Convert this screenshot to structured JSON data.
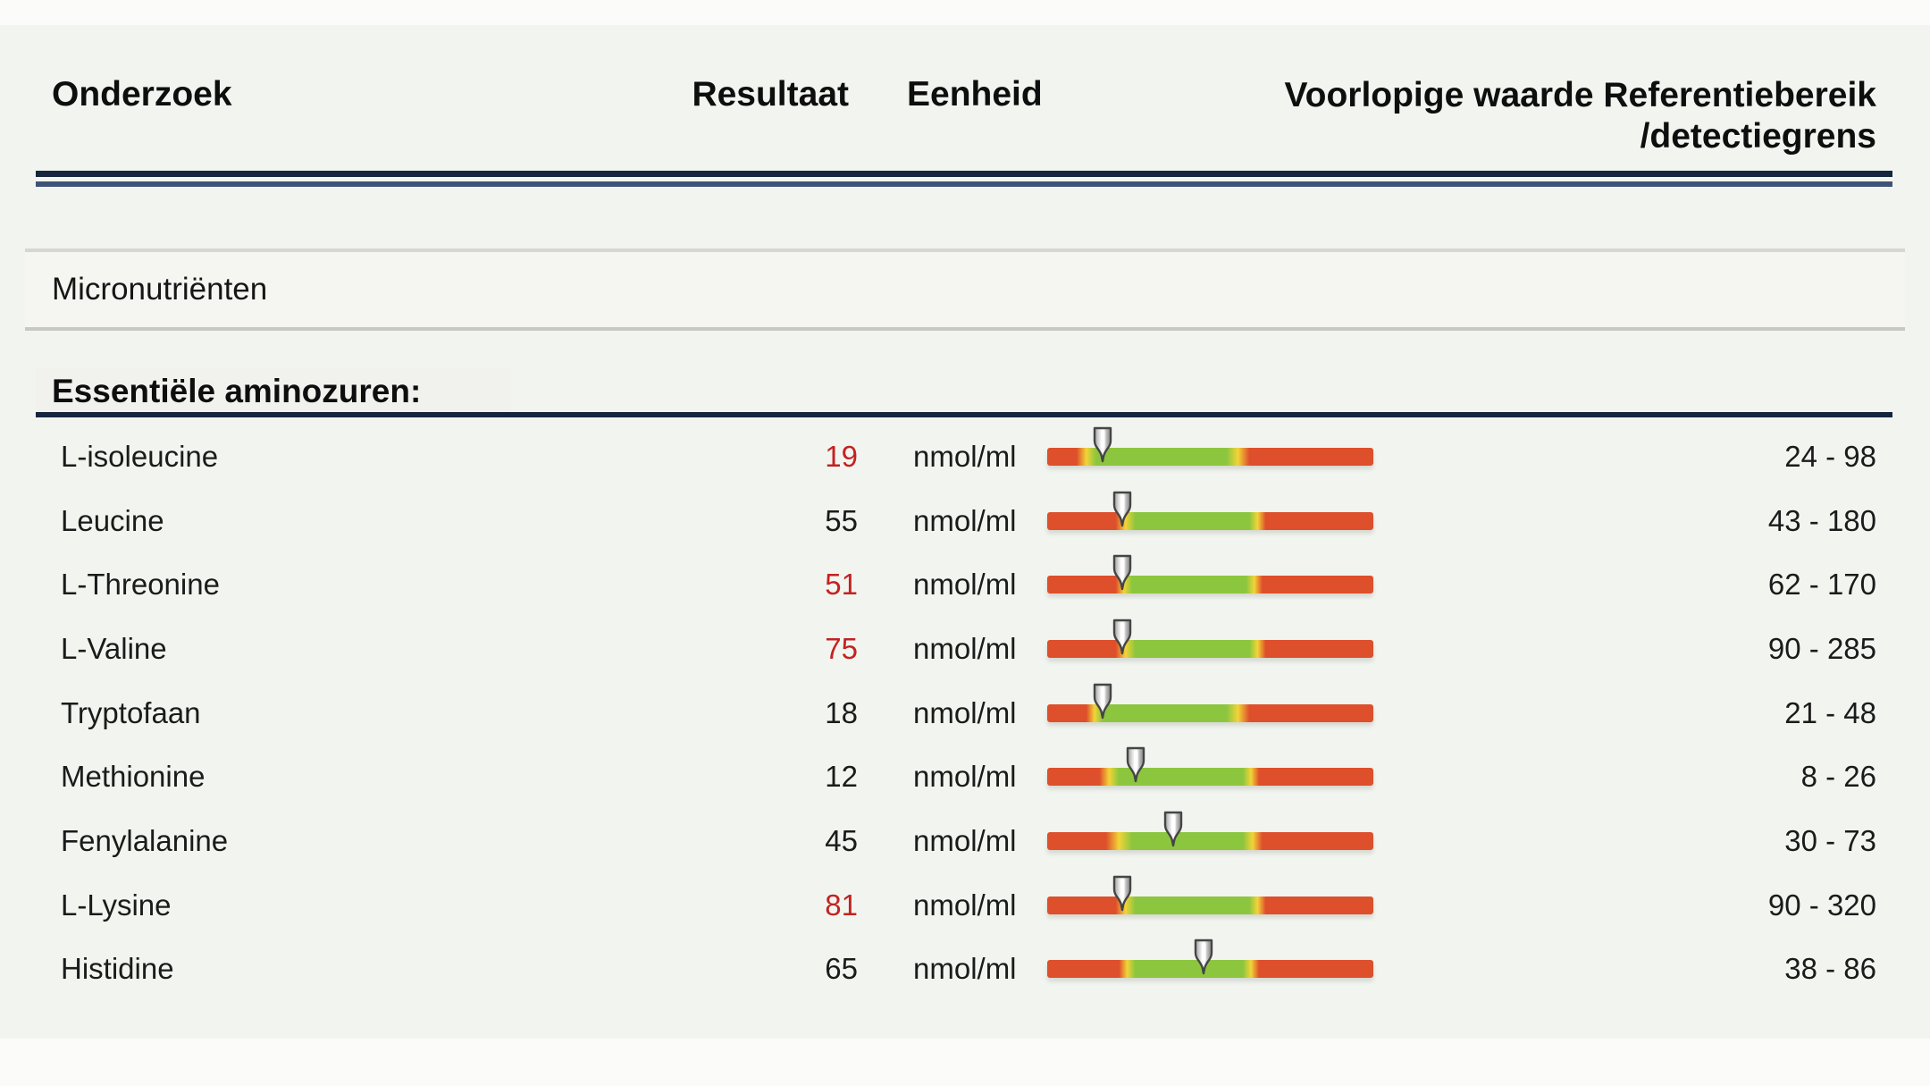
{
  "header": {
    "onderzoek": "Onderzoek",
    "resultaat": "Resultaat",
    "eenheid": "Eenheid",
    "reference_line1": "Voorlopige waarde Referentiebereik",
    "reference_line2": "/detectiegrens"
  },
  "section": {
    "title": "Micronutriënten"
  },
  "subsection": {
    "title": "Essentiële aminozuren:"
  },
  "colors": {
    "page_bg": "#f2f5ef",
    "navy_rule": "#16253f",
    "navy_rule_light": "#3e5477",
    "flag_red": "#c32222",
    "text": "#1b1b1b",
    "bar_red": "#de4f2b",
    "bar_yellow": "#f2d438",
    "bar_green": "#8cc63e",
    "marker_outline": "#454545"
  },
  "chart_data": {
    "type": "table",
    "section": "Micronutriënten",
    "group": "Essentiële aminozuren:",
    "columns": [
      "Onderzoek",
      "Resultaat",
      "Eenheid",
      "Voorlopige waarde",
      "Referentiebereik /detectiegrens"
    ],
    "rows": [
      {
        "name": "L-isoleucine",
        "result": 19,
        "flagged": true,
        "unit": "nmol/ml",
        "reference_range": "24 - 98",
        "ref_low": 24,
        "ref_high": 98,
        "marker_pct": 17,
        "gradient_stops": [
          9,
          15,
          55,
          62
        ]
      },
      {
        "name": "Leucine",
        "result": 55,
        "flagged": false,
        "unit": "nmol/ml",
        "reference_range": "43 - 180",
        "ref_low": 43,
        "ref_high": 180,
        "marker_pct": 23,
        "gradient_stops": [
          21,
          27,
          62,
          67
        ]
      },
      {
        "name": "L-Threonine",
        "result": 51,
        "flagged": true,
        "unit": "nmol/ml",
        "reference_range": "62 - 170",
        "ref_low": 62,
        "ref_high": 170,
        "marker_pct": 23,
        "gradient_stops": [
          21,
          26,
          61,
          66
        ]
      },
      {
        "name": "L-Valine",
        "result": 75,
        "flagged": true,
        "unit": "nmol/ml",
        "reference_range": "90 - 285",
        "ref_low": 90,
        "ref_high": 285,
        "marker_pct": 23,
        "gradient_stops": [
          21,
          27,
          62,
          67
        ]
      },
      {
        "name": "Tryptofaan",
        "result": 18,
        "flagged": false,
        "unit": "nmol/ml",
        "reference_range": "21 - 48",
        "ref_low": 21,
        "ref_high": 48,
        "marker_pct": 17,
        "gradient_stops": [
          12,
          17,
          55,
          62
        ]
      },
      {
        "name": "Methionine",
        "result": 12,
        "flagged": false,
        "unit": "nmol/ml",
        "reference_range": "8 - 26",
        "ref_low": 8,
        "ref_high": 26,
        "marker_pct": 27,
        "gradient_stops": [
          16,
          22,
          60,
          65
        ]
      },
      {
        "name": "Fenylalanine",
        "result": 45,
        "flagged": false,
        "unit": "nmol/ml",
        "reference_range": "30 - 73",
        "ref_low": 30,
        "ref_high": 73,
        "marker_pct": 38.5,
        "gradient_stops": [
          18,
          26,
          60,
          66
        ]
      },
      {
        "name": "L-Lysine",
        "result": 81,
        "flagged": true,
        "unit": "nmol/ml",
        "reference_range": "90 - 320",
        "ref_low": 90,
        "ref_high": 320,
        "marker_pct": 23,
        "gradient_stops": [
          21,
          27,
          62,
          67
        ]
      },
      {
        "name": "Histidine",
        "result": 65,
        "flagged": false,
        "unit": "nmol/ml",
        "reference_range": "38 - 86",
        "ref_low": 38,
        "ref_high": 86,
        "marker_pct": 48,
        "gradient_stops": [
          22,
          27,
          60,
          65
        ]
      }
    ]
  }
}
